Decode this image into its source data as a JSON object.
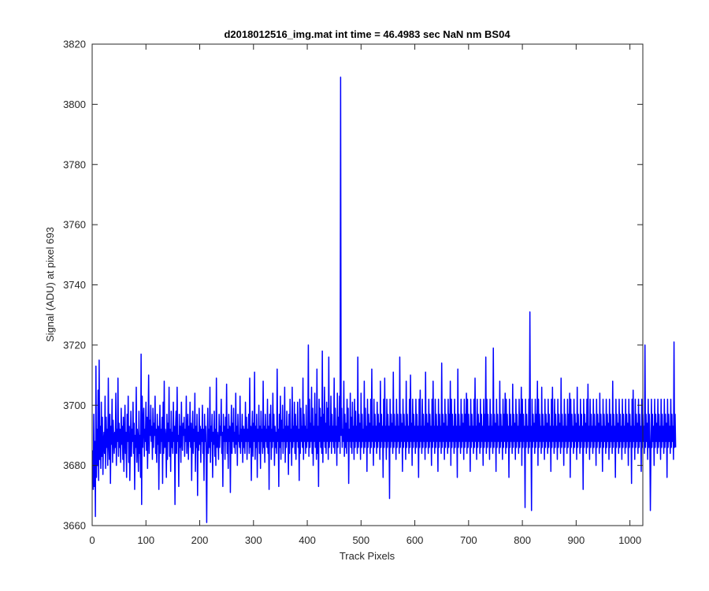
{
  "chart_data": {
    "type": "line",
    "title": "d2018012516_img.mat int time = 46.4983 sec  NaN nm BS04",
    "xlabel": "Track Pixels",
    "ylabel": "Signal (ADU) at pixel 693",
    "xlim": [
      0,
      1024
    ],
    "ylim": [
      3660,
      3820
    ],
    "xticks": [
      0,
      100,
      200,
      300,
      400,
      500,
      600,
      700,
      800,
      900,
      1000
    ],
    "yticks": [
      3660,
      3680,
      3700,
      3720,
      3740,
      3760,
      3780,
      3800,
      3820
    ],
    "grid": false,
    "legend": "none",
    "line_color": "#0000ff",
    "series": [
      {
        "x_start": 1,
        "x_step": 1,
        "values": [
          3685,
          3672,
          3697,
          3673,
          3688,
          3663,
          3713,
          3676,
          3692,
          3680,
          3705,
          3675,
          3715,
          3682,
          3693,
          3679,
          3701,
          3683,
          3696,
          3677,
          3688,
          3691,
          3684,
          3703,
          3679,
          3696,
          3686,
          3692,
          3680,
          3709,
          3688,
          3682,
          3697,
          3674,
          3693,
          3687,
          3702,
          3681,
          3695,
          3689,
          3684,
          3691,
          3686,
          3704,
          3680,
          3692,
          3688,
          3709,
          3683,
          3694,
          3686,
          3692,
          3681,
          3699,
          3687,
          3693,
          3682,
          3696,
          3678,
          3690,
          3700,
          3684,
          3691,
          3676,
          3697,
          3688,
          3703,
          3681,
          3693,
          3675,
          3687,
          3698,
          3683,
          3692,
          3688,
          3701,
          3684,
          3694,
          3672,
          3690,
          3686,
          3706,
          3681,
          3692,
          3688,
          3678,
          3698,
          3684,
          3690,
          3676,
          3717,
          3667,
          3703,
          3686,
          3694,
          3699,
          3683,
          3692,
          3688,
          3701,
          3685,
          3696,
          3679,
          3692,
          3710,
          3684,
          3695,
          3690,
          3700,
          3688,
          3693,
          3682,
          3699,
          3686,
          3694,
          3690,
          3703,
          3684,
          3692,
          3681,
          3697,
          3687,
          3693,
          3672,
          3690,
          3700,
          3684,
          3692,
          3688,
          3696,
          3674,
          3701,
          3684,
          3708,
          3686,
          3692,
          3689,
          3676,
          3697,
          3682,
          3694,
          3688,
          3706,
          3683,
          3692,
          3678,
          3698,
          3686,
          3691,
          3684,
          3701,
          3688,
          3693,
          3667,
          3692,
          3698,
          3684,
          3706,
          3688,
          3690,
          3673,
          3697,
          3686,
          3693,
          3681,
          3701,
          3688,
          3685,
          3694,
          3690,
          3696,
          3683,
          3692,
          3688,
          3703,
          3684,
          3690,
          3697,
          3682,
          3693,
          3688,
          3701,
          3686,
          3694,
          3675,
          3690,
          3698,
          3684,
          3692,
          3688,
          3704,
          3678,
          3693,
          3686,
          3697,
          3670,
          3691,
          3685,
          3699,
          3687,
          3693,
          3681,
          3692,
          3688,
          3700,
          3684,
          3692,
          3675,
          3697,
          3688,
          3693,
          3682,
          3661,
          3690,
          3699,
          3684,
          3692,
          3686,
          3706,
          3681,
          3693,
          3688,
          3697,
          3676,
          3691,
          3687,
          3698,
          3683,
          3692,
          3680,
          3709,
          3686,
          3691,
          3688,
          3682,
          3697,
          3686,
          3693,
          3690,
          3702,
          3684,
          3691,
          3673,
          3697,
          3688,
          3693,
          3682,
          3696,
          3688,
          3707,
          3684,
          3692,
          3679,
          3697,
          3688,
          3693,
          3671,
          3690,
          3700,
          3684,
          3694,
          3688,
          3699,
          3686,
          3691,
          3684,
          3704,
          3687,
          3693,
          3680,
          3697,
          3688,
          3690,
          3686,
          3703,
          3684,
          3692,
          3688,
          3697,
          3681,
          3693,
          3686,
          3692,
          3684,
          3701,
          3688,
          3696,
          3682,
          3692,
          3688,
          3697,
          3684,
          3709,
          3686,
          3693,
          3675,
          3691,
          3698,
          3683,
          3694,
          3688,
          3711,
          3682,
          3693,
          3686,
          3697,
          3676,
          3692,
          3688,
          3700,
          3684,
          3693,
          3679,
          3698,
          3688,
          3692,
          3684,
          3708,
          3686,
          3693,
          3681,
          3697,
          3688,
          3692,
          3686,
          3702,
          3684,
          3693,
          3672,
          3697,
          3688,
          3700,
          3682,
          3692,
          3686,
          3704,
          3688,
          3697,
          3680,
          3693,
          3686,
          3691,
          3684,
          3712,
          3688,
          3692,
          3673,
          3697,
          3686,
          3703,
          3682,
          3695,
          3688,
          3700,
          3684,
          3692,
          3688,
          3706,
          3681,
          3693,
          3686,
          3698,
          3688,
          3693,
          3677,
          3697,
          3684,
          3702,
          3688,
          3692,
          3680,
          3706,
          3686,
          3693,
          3688,
          3701,
          3684,
          3697,
          3682,
          3693,
          3688,
          3701,
          3686,
          3692,
          3675,
          3702,
          3684,
          3699,
          3688,
          3693,
          3686,
          3709,
          3682,
          3697,
          3688,
          3693,
          3684,
          3700,
          3686,
          3692,
          3688,
          3720,
          3683,
          3702,
          3686,
          3694,
          3688,
          3706,
          3684,
          3699,
          3680,
          3693,
          3688,
          3704,
          3686,
          3697,
          3682,
          3712,
          3684,
          3693,
          3673,
          3702,
          3688,
          3699,
          3686,
          3696,
          3684,
          3718,
          3681,
          3697,
          3688,
          3706,
          3686,
          3694,
          3684,
          3701,
          3688,
          3699,
          3682,
          3716,
          3686,
          3693,
          3688,
          3703,
          3684,
          3697,
          3688,
          3693,
          3686,
          3709,
          3684,
          3699,
          3688,
          3693,
          3680,
          3704,
          3686,
          3696,
          3688,
          3703,
          3684,
          3809,
          3690,
          3699,
          3686,
          3692,
          3688,
          3708,
          3683,
          3697,
          3686,
          3694,
          3684,
          3702,
          3688,
          3699,
          3674,
          3692,
          3688,
          3704,
          3686,
          3696,
          3684,
          3701,
          3688,
          3693,
          3682,
          3702,
          3686,
          3698,
          3688,
          3693,
          3684,
          3716,
          3686,
          3697,
          3688,
          3694,
          3682,
          3704,
          3686,
          3697,
          3688,
          3692,
          3684,
          3708,
          3686,
          3699,
          3688,
          3693,
          3678,
          3702,
          3686,
          3697,
          3688,
          3694,
          3684,
          3702,
          3686,
          3712,
          3688,
          3693,
          3680,
          3702,
          3686,
          3697,
          3688,
          3693,
          3684,
          3701,
          3686,
          3697,
          3688,
          3694,
          3682,
          3708,
          3686,
          3697,
          3688,
          3693,
          3676,
          3702,
          3686,
          3709,
          3688,
          3693,
          3682,
          3702,
          3686,
          3697,
          3688,
          3693,
          3669,
          3702,
          3686,
          3697,
          3688,
          3694,
          3684,
          3711,
          3686,
          3697,
          3688,
          3693,
          3682,
          3702,
          3686,
          3697,
          3688,
          3693,
          3684,
          3716,
          3686,
          3697,
          3688,
          3694,
          3678,
          3702,
          3686,
          3697,
          3688,
          3693,
          3682,
          3708,
          3686,
          3697,
          3688,
          3693,
          3684,
          3702,
          3686,
          3710,
          3688,
          3694,
          3680,
          3702,
          3686,
          3697,
          3688,
          3693,
          3684,
          3702,
          3686,
          3697,
          3688,
          3693,
          3676,
          3702,
          3686,
          3705,
          3688,
          3693,
          3684,
          3702,
          3686,
          3697,
          3688,
          3693,
          3682,
          3711,
          3686,
          3697,
          3688,
          3694,
          3684,
          3702,
          3686,
          3697,
          3688,
          3693,
          3680,
          3702,
          3686,
          3708,
          3688,
          3693,
          3684,
          3702,
          3686,
          3697,
          3688,
          3693,
          3678,
          3702,
          3686,
          3697,
          3688,
          3693,
          3684,
          3714,
          3686,
          3697,
          3688,
          3694,
          3682,
          3702,
          3686,
          3697,
          3688,
          3693,
          3684,
          3702,
          3686,
          3697,
          3688,
          3708,
          3680,
          3702,
          3686,
          3697,
          3688,
          3693,
          3684,
          3702,
          3686,
          3697,
          3688,
          3693,
          3676,
          3712,
          3686,
          3697,
          3688,
          3693,
          3684,
          3702,
          3686,
          3697,
          3688,
          3694,
          3682,
          3702,
          3686,
          3697,
          3688,
          3704,
          3684,
          3702,
          3686,
          3697,
          3688,
          3693,
          3678,
          3702,
          3686,
          3697,
          3688,
          3693,
          3684,
          3702,
          3686,
          3709,
          3688,
          3693,
          3682,
          3702,
          3686,
          3697,
          3688,
          3694,
          3684,
          3702,
          3686,
          3697,
          3688,
          3693,
          3680,
          3702,
          3686,
          3697,
          3688,
          3716,
          3684,
          3702,
          3686,
          3697,
          3688,
          3693,
          3682,
          3702,
          3686,
          3697,
          3688,
          3693,
          3684,
          3719,
          3686,
          3697,
          3688,
          3694,
          3678,
          3702,
          3686,
          3697,
          3688,
          3693,
          3684,
          3708,
          3686,
          3697,
          3688,
          3693,
          3682,
          3702,
          3686,
          3697,
          3688,
          3704,
          3684,
          3702,
          3686,
          3697,
          3688,
          3693,
          3676,
          3702,
          3686,
          3697,
          3688,
          3693,
          3684,
          3707,
          3686,
          3697,
          3688,
          3694,
          3682,
          3702,
          3686,
          3697,
          3688,
          3693,
          3684,
          3702,
          3686,
          3697,
          3688,
          3706,
          3680,
          3702,
          3686,
          3697,
          3688,
          3693,
          3666,
          3702,
          3686,
          3697,
          3688,
          3693,
          3684,
          3702,
          3686,
          3731,
          3688,
          3693,
          3665,
          3702,
          3686,
          3697,
          3688,
          3694,
          3684,
          3702,
          3686,
          3697,
          3688,
          3708,
          3680,
          3702,
          3686,
          3697,
          3688,
          3693,
          3684,
          3706,
          3686,
          3697,
          3688,
          3693,
          3682,
          3702,
          3686,
          3697,
          3688,
          3694,
          3684,
          3702,
          3686,
          3697,
          3688,
          3693,
          3678,
          3702,
          3686,
          3706,
          3688,
          3693,
          3684,
          3702,
          3686,
          3697,
          3688,
          3693,
          3682,
          3702,
          3686,
          3697,
          3688,
          3694,
          3684,
          3709,
          3686,
          3697,
          3688,
          3693,
          3680,
          3702,
          3686,
          3697,
          3688,
          3693,
          3684,
          3702,
          3686,
          3697,
          3688,
          3704,
          3676,
          3702,
          3686,
          3697,
          3688,
          3693,
          3684,
          3702,
          3686,
          3697,
          3688,
          3694,
          3682,
          3706,
          3686,
          3697,
          3688,
          3693,
          3684,
          3702,
          3686,
          3697,
          3688,
          3693,
          3672,
          3702,
          3686,
          3697,
          3688,
          3694,
          3684,
          3702,
          3686,
          3707,
          3688,
          3693,
          3682,
          3702,
          3686,
          3697,
          3688,
          3693,
          3684,
          3702,
          3686,
          3697,
          3688,
          3693,
          3680,
          3702,
          3686,
          3697,
          3688,
          3694,
          3684,
          3704,
          3686,
          3697,
          3688,
          3693,
          3678,
          3702,
          3686,
          3697,
          3688,
          3693,
          3684,
          3702,
          3686,
          3697,
          3688,
          3694,
          3682,
          3702,
          3686,
          3697,
          3688,
          3693,
          3684,
          3708,
          3686,
          3697,
          3688,
          3693,
          3676,
          3702,
          3686,
          3697,
          3688,
          3694,
          3684,
          3702,
          3686,
          3697,
          3688,
          3693,
          3682,
          3702,
          3686,
          3697,
          3688,
          3693,
          3684,
          3702,
          3686,
          3697,
          3688,
          3694,
          3680,
          3702,
          3686,
          3697,
          3688,
          3693,
          3674,
          3702,
          3686,
          3705,
          3688,
          3693,
          3682,
          3702,
          3686,
          3697,
          3688,
          3694,
          3684,
          3702,
          3686,
          3697,
          3688,
          3693,
          3678,
          3702,
          3686,
          3697,
          3688,
          3693,
          3684,
          3720,
          3686,
          3697,
          3688,
          3694,
          3682,
          3702,
          3686,
          3697,
          3688,
          3665,
          3684,
          3702,
          3686,
          3697,
          3688,
          3693,
          3680,
          3702,
          3686,
          3697,
          3688,
          3694,
          3684,
          3702,
          3686,
          3697,
          3688,
          3693,
          3682,
          3702,
          3686,
          3697,
          3688,
          3693,
          3684,
          3702,
          3686,
          3697,
          3688,
          3694,
          3676,
          3702,
          3686,
          3697,
          3688,
          3693,
          3684,
          3702,
          3686,
          3697,
          3688,
          3693,
          3682,
          3721,
          3686,
          3697,
          3686
        ]
      }
    ]
  }
}
